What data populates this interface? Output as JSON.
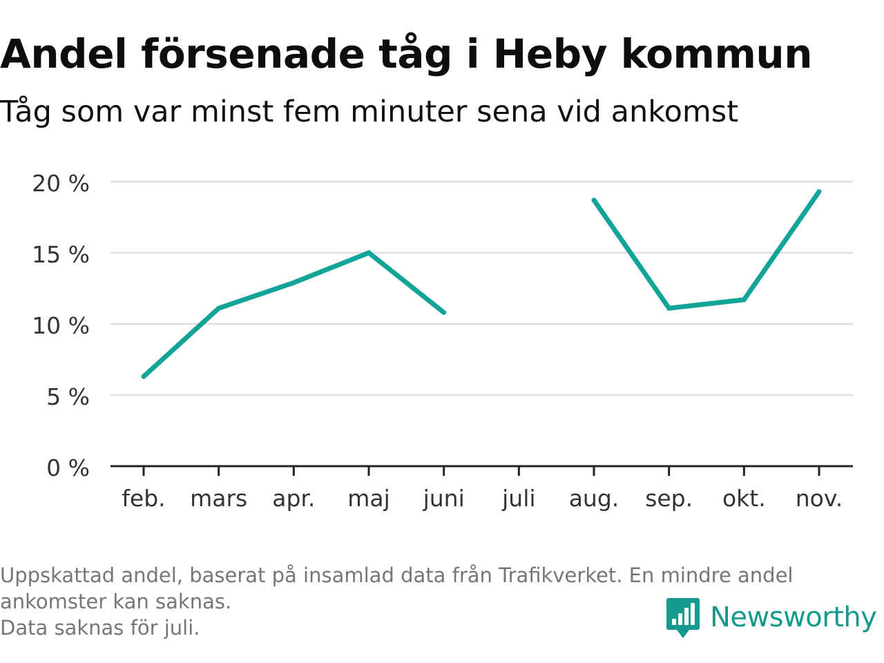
{
  "title": "Andel försenade tåg i Heby kommun",
  "subtitle": "Tåg som var minst fem minuter sena vid ankomst",
  "footnote": {
    "line1": "Uppskattad andel, baserat på insamlad data från Trafikverket. En mindre andel",
    "line2": "ankomster kan saknas.",
    "line3": "Data saknas för juli."
  },
  "brand": {
    "name": "Newsworthy",
    "icon": "newsworthy-logo-icon"
  },
  "colors": {
    "line": "#13a498",
    "grid": "#dddddd",
    "axis": "#222222",
    "tick_label": "#333333",
    "footnote": "#767676",
    "brand": "#149a8d"
  },
  "chart_data": {
    "type": "line",
    "categories": [
      "feb.",
      "mars",
      "apr.",
      "maj",
      "juni",
      "juli",
      "aug.",
      "sep.",
      "okt.",
      "nov."
    ],
    "series": [
      {
        "values": [
          6.3,
          11.1,
          12.9,
          15.0,
          10.8,
          null,
          18.7,
          11.1,
          11.7,
          19.3
        ]
      }
    ],
    "ylim": [
      0,
      20
    ],
    "yticks": [
      0,
      5,
      10,
      15,
      20
    ],
    "ytick_labels": [
      "0 %",
      "5 %",
      "10 %",
      "15 %",
      "20 %"
    ],
    "xlabel": "",
    "ylabel": "",
    "grid": true,
    "legend": false
  }
}
